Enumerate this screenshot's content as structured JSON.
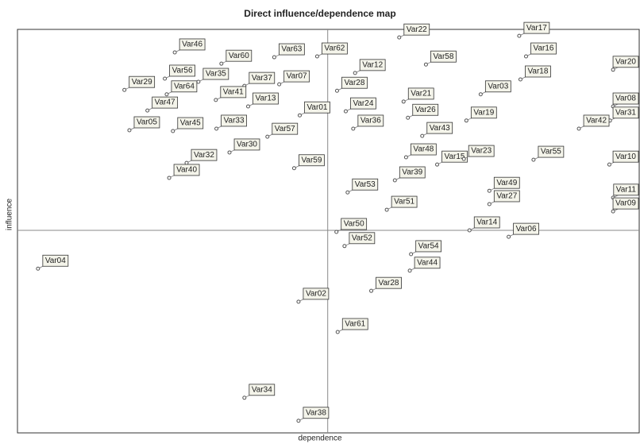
{
  "chart_data": {
    "type": "scatter",
    "title": "Direct influence/dependence map",
    "x_label": "dependence",
    "y_label": "influence",
    "xlim": [
      0,
      100
    ],
    "ylim": [
      0,
      100
    ],
    "reference_x": 49.9,
    "reference_y": 50.2,
    "color": "#555555",
    "labels": [
      "Var46",
      "Var60",
      "Var63",
      "Var62",
      "Var12",
      "Var22",
      "Var17",
      "Var16",
      "Var58",
      "Var18",
      "Var20",
      "Var29",
      "Var56",
      "Var35",
      "Var37",
      "Var07",
      "Var28",
      "Var64",
      "Var41",
      "Var13",
      "Var01",
      "Var24",
      "Var21",
      "Var03",
      "Var08",
      "Var47",
      "Var26",
      "Var19",
      "Var31",
      "Var42",
      "Var05",
      "Var45",
      "Var33",
      "Var36",
      "Var57",
      "Var43",
      "Var30",
      "Var48",
      "Var15",
      "Var23",
      "Var55",
      "Var10",
      "Var32",
      "Var40",
      "Var59",
      "Var39",
      "Var53",
      "Var49",
      "Var11",
      "Var27",
      "Var09",
      "Var51",
      "Var50",
      "Var14",
      "Var06",
      "Var52",
      "Var54",
      "Var04",
      "Var44",
      "Var28",
      "Var02",
      "Var61",
      "Var34",
      "Var38"
    ],
    "x": [
      25.3,
      32.8,
      41.3,
      48.2,
      54.3,
      61.4,
      80.7,
      81.8,
      65.7,
      80.9,
      95.8,
      17.2,
      23.7,
      29.1,
      36.5,
      42.1,
      51.4,
      24.0,
      31.9,
      37.1,
      45.4,
      52.8,
      62.1,
      74.5,
      95.8,
      20.9,
      62.8,
      72.2,
      95.3,
      90.3,
      18.0,
      25.0,
      32.0,
      54.0,
      40.2,
      65.1,
      34.1,
      62.5,
      67.5,
      71.8,
      83.0,
      95.2,
      27.2,
      24.4,
      44.5,
      60.7,
      53.1,
      75.9,
      95.8,
      75.9,
      95.8,
      59.4,
      51.3,
      72.7,
      79.0,
      52.6,
      63.3,
      3.3,
      63.1,
      56.9,
      45.2,
      51.5,
      36.5,
      45.2
    ],
    "y": [
      94.3,
      91.5,
      93.1,
      93.3,
      89.2,
      98.0,
      98.4,
      93.3,
      91.3,
      87.6,
      90.0,
      85.0,
      87.8,
      87.0,
      86.0,
      86.4,
      84.8,
      83.9,
      82.5,
      80.9,
      78.7,
      79.7,
      82.1,
      83.9,
      80.9,
      79.9,
      78.1,
      77.4,
      77.4,
      75.4,
      75.0,
      74.8,
      75.4,
      75.4,
      73.4,
      73.6,
      69.5,
      68.3,
      66.5,
      67.9,
      67.7,
      66.5,
      66.9,
      63.2,
      65.6,
      62.6,
      59.6,
      60.0,
      58.3,
      56.7,
      54.9,
      55.3,
      49.8,
      50.2,
      48.6,
      46.3,
      44.3,
      40.7,
      40.2,
      35.2,
      32.5,
      25.0,
      8.7,
      3.0
    ]
  }
}
